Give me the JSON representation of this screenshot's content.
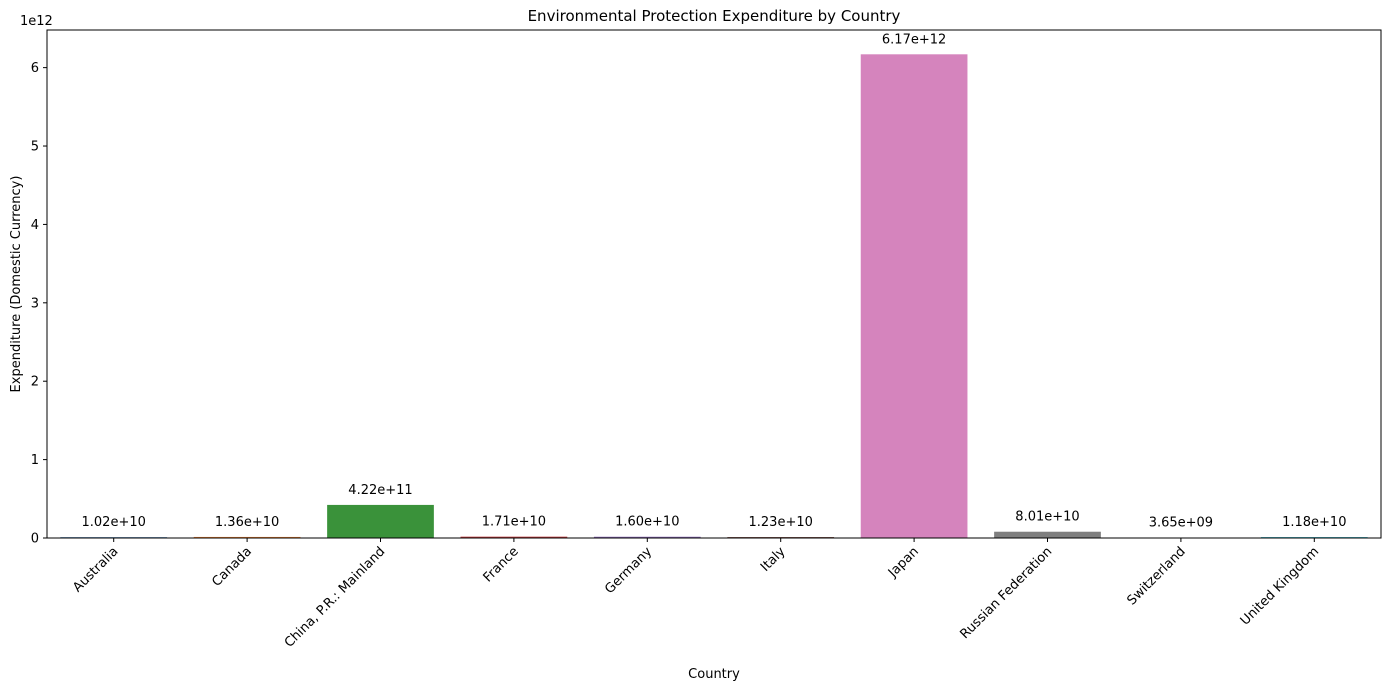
{
  "chart_data": {
    "type": "bar",
    "title": "Environmental Protection Expenditure by Country",
    "xlabel": "Country",
    "ylabel": "Expenditure (Domestic Currency)",
    "y_offset_label": "1e12",
    "y_scale": 1000000000000.0,
    "ylim": [
      0,
      6480000000000.0
    ],
    "yticks": [
      0,
      1,
      2,
      3,
      4,
      5,
      6
    ],
    "grid": false,
    "categories": [
      "Australia",
      "Canada",
      "China, P.R.: Mainland",
      "France",
      "Germany",
      "Italy",
      "Japan",
      "Russian Federation",
      "Switzerland",
      "United Kingdom"
    ],
    "values": [
      10200000000.0,
      13600000000.0,
      422000000000.0,
      17100000000.0,
      16000000000.0,
      12300000000.0,
      6170000000000.0,
      80100000000.0,
      3650000000.0,
      11800000000.0
    ],
    "value_labels": [
      "1.02e+10",
      "1.36e+10",
      "4.22e+11",
      "1.71e+10",
      "1.60e+10",
      "1.23e+10",
      "6.17e+12",
      "8.01e+10",
      "3.65e+09",
      "1.18e+10"
    ],
    "colors": [
      "#3a75af",
      "#ef8536",
      "#3a923a",
      "#c03d3e",
      "#8d6ab8",
      "#855b50",
      "#d584bd",
      "#7f7f7f",
      "#bcbf3b",
      "#3ebcce"
    ]
  }
}
